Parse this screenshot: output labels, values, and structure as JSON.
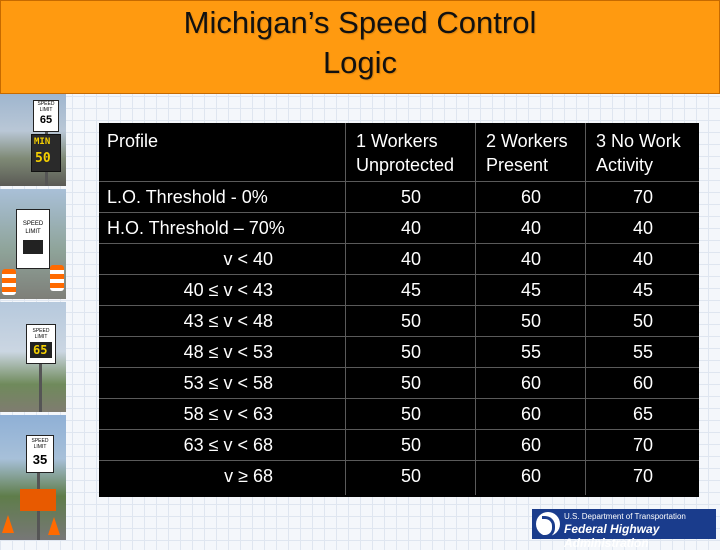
{
  "title": {
    "line1": "Michigan’s Speed Control",
    "line2": "Logic"
  },
  "photos": {
    "sign1_line1": "SPEED",
    "sign1_line2": "LIMIT",
    "sign1_value": "65",
    "sign1_min_label": "MIN",
    "sign1_min_value": "50",
    "sign2_line1": "SPEED",
    "sign2_line2": "LIMIT",
    "sign3_line1": "SPEED",
    "sign3_line2": "LIMIT",
    "sign3_value": "65",
    "sign4_line1": "SPEED",
    "sign4_line2": "LIMIT",
    "sign4_value": "35"
  },
  "table": {
    "header": {
      "profile": "Profile",
      "col1_line1": "1   Workers",
      "col1_line2": "Unprotected",
      "col2_line1": "2 Workers",
      "col2_line2": "Present",
      "col3_line1": "3 No Work",
      "col3_line2": "Activity"
    },
    "rows": [
      {
        "label": "L.O. Threshold - 0%",
        "v1": "50",
        "v2": "60",
        "v3": "70"
      },
      {
        "label": "H.O. Threshold – 70%",
        "v1": "40",
        "v2": "40",
        "v3": "40"
      },
      {
        "label": "v < 40",
        "v1": "40",
        "v2": "40",
        "v3": "40"
      },
      {
        "label": "40 ≤ v < 43",
        "v1": "45",
        "v2": "45",
        "v3": "45"
      },
      {
        "label": "43 ≤ v < 48",
        "v1": "50",
        "v2": "50",
        "v3": "50"
      },
      {
        "label": "48 ≤ v < 53",
        "v1": "50",
        "v2": "55",
        "v3": "55"
      },
      {
        "label": "53 ≤ v < 58",
        "v1": "50",
        "v2": "60",
        "v3": "60"
      },
      {
        "label": "58 ≤ v < 63",
        "v1": "50",
        "v2": "60",
        "v3": "65"
      },
      {
        "label": "63 ≤ v < 68",
        "v1": "50",
        "v2": "60",
        "v3": "70"
      },
      {
        "label": "v ≥ 68",
        "v1": "50",
        "v2": "60",
        "v3": "70"
      }
    ]
  },
  "logo": {
    "line1": "U.S. Department of Transportation",
    "line2": "Federal Highway Administration"
  },
  "colors": {
    "title_bar": "#ff9a10",
    "table_bg": "#000000",
    "table_text": "#ffffff",
    "logo_bg": "#1a3c8c"
  }
}
